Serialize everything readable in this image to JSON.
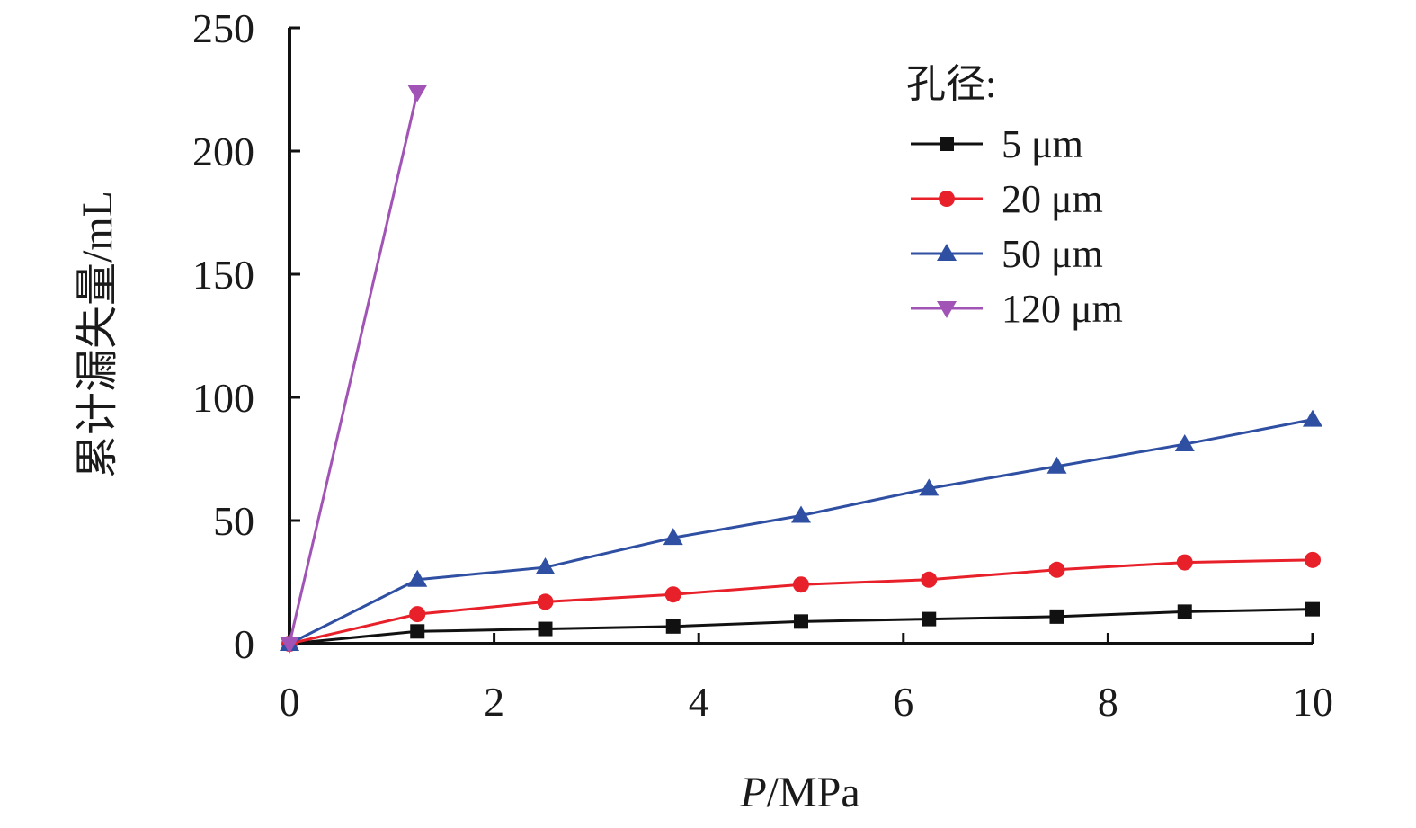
{
  "chart_data": {
    "type": "line",
    "xlabel_italic": "P",
    "xlabel_rest": "/MPa",
    "ylabel": "累计漏失量/mL",
    "xlim": [
      0,
      10
    ],
    "ylim": [
      0,
      250
    ],
    "xticks": [
      "0",
      "2",
      "4",
      "6",
      "8",
      "10"
    ],
    "yticks": [
      "0",
      "50",
      "100",
      "150",
      "200",
      "250"
    ],
    "legend_title": "孔径:",
    "legend_position": "top-right",
    "grid": false,
    "series": [
      {
        "name": "5 μm",
        "color": "#111111",
        "marker": "square",
        "x": [
          0,
          1.25,
          2.5,
          3.75,
          5,
          6.25,
          7.5,
          8.75,
          10
        ],
        "y": [
          0,
          5,
          6,
          7,
          9,
          10,
          11,
          13,
          14
        ]
      },
      {
        "name": "20 μm",
        "color": "#e8202a",
        "marker": "circle",
        "x": [
          0,
          1.25,
          2.5,
          3.75,
          5,
          6.25,
          7.5,
          8.75,
          10
        ],
        "y": [
          0,
          12,
          17,
          20,
          24,
          26,
          30,
          33,
          34
        ]
      },
      {
        "name": "50 μm",
        "color": "#2f4fa2",
        "marker": "triangle-up",
        "x": [
          0,
          1.25,
          2.5,
          3.75,
          5,
          6.25,
          7.5,
          8.75,
          10
        ],
        "y": [
          0,
          26,
          31,
          43,
          52,
          63,
          72,
          81,
          91
        ]
      },
      {
        "name": "120 μm",
        "color": "#a154b5",
        "marker": "triangle-down",
        "x": [
          0,
          1.25
        ],
        "y": [
          0,
          224
        ]
      }
    ]
  }
}
